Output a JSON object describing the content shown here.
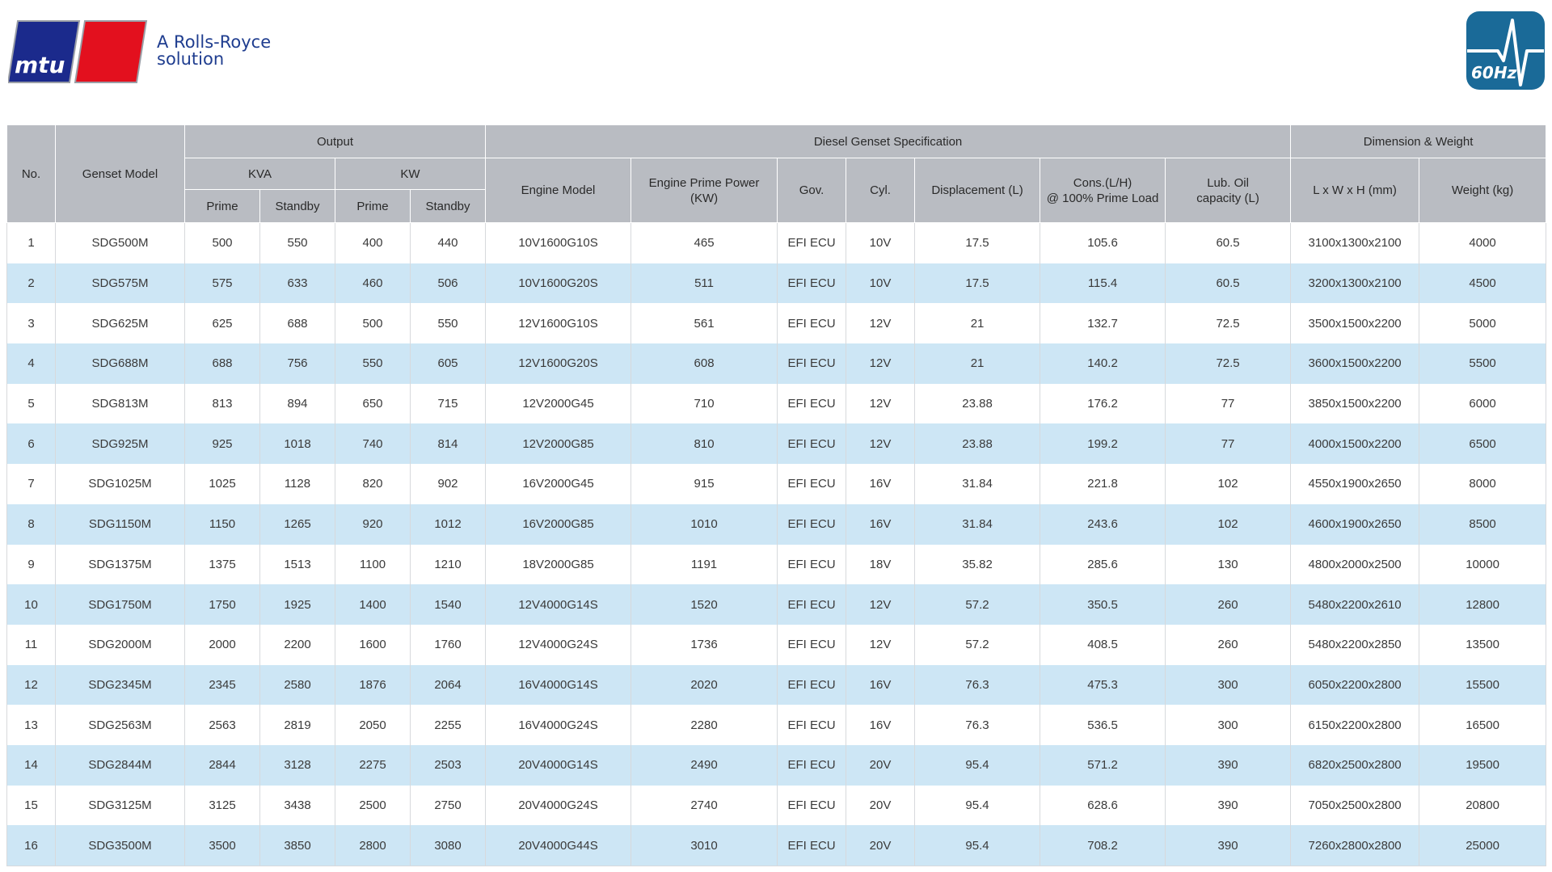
{
  "brand": {
    "logo_text": "mtu",
    "tagline_line1": "A Rolls-Royce",
    "tagline_line2": "solution",
    "badge_text": "60Hz",
    "colors": {
      "blue": "#1b2a8c",
      "red": "#e3101e",
      "badge": "#1a6a98"
    }
  },
  "table": {
    "headers": {
      "no": "No.",
      "genset_model": "Genset Model",
      "output": "Output",
      "kva": "KVA",
      "kw": "KW",
      "prime": "Prime",
      "standby": "Standby",
      "diesel_spec": "Diesel Genset Specification",
      "engine_model": "Engine Model",
      "engine_prime_power": "Engine Prime Power (KW)",
      "gov": "Gov.",
      "cyl": "Cyl.",
      "displacement": "Displacement (L)",
      "cons_line1": "Cons.(L/H)",
      "cons_line2": "@ 100% Prime Load",
      "lub_oil_line1": "Lub. Oil",
      "lub_oil_line2": "capacity (L)",
      "dimension_weight": "Dimension & Weight",
      "dimensions": "L x W x H (mm)",
      "weight": "Weight (kg)"
    },
    "rows": [
      [
        "1",
        "SDG500M",
        "500",
        "550",
        "400",
        "440",
        "10V1600G10S",
        "465",
        "EFI ECU",
        "10V",
        "17.5",
        "105.6",
        "60.5",
        "3100x1300x2100",
        "4000"
      ],
      [
        "2",
        "SDG575M",
        "575",
        "633",
        "460",
        "506",
        "10V1600G20S",
        "511",
        "EFI ECU",
        "10V",
        "17.5",
        "115.4",
        "60.5",
        "3200x1300x2100",
        "4500"
      ],
      [
        "3",
        "SDG625M",
        "625",
        "688",
        "500",
        "550",
        "12V1600G10S",
        "561",
        "EFI ECU",
        "12V",
        "21",
        "132.7",
        "72.5",
        "3500x1500x2200",
        "5000"
      ],
      [
        "4",
        "SDG688M",
        "688",
        "756",
        "550",
        "605",
        "12V1600G20S",
        "608",
        "EFI ECU",
        "12V",
        "21",
        "140.2",
        "72.5",
        "3600x1500x2200",
        "5500"
      ],
      [
        "5",
        "SDG813M",
        "813",
        "894",
        "650",
        "715",
        "12V2000G45",
        "710",
        "EFI ECU",
        "12V",
        "23.88",
        "176.2",
        "77",
        "3850x1500x2200",
        "6000"
      ],
      [
        "6",
        "SDG925M",
        "925",
        "1018",
        "740",
        "814",
        "12V2000G85",
        "810",
        "EFI ECU",
        "12V",
        "23.88",
        "199.2",
        "77",
        "4000x1500x2200",
        "6500"
      ],
      [
        "7",
        "SDG1025M",
        "1025",
        "1128",
        "820",
        "902",
        "16V2000G45",
        "915",
        "EFI ECU",
        "16V",
        "31.84",
        "221.8",
        "102",
        "4550x1900x2650",
        "8000"
      ],
      [
        "8",
        "SDG1150M",
        "1150",
        "1265",
        "920",
        "1012",
        "16V2000G85",
        "1010",
        "EFI ECU",
        "16V",
        "31.84",
        "243.6",
        "102",
        "4600x1900x2650",
        "8500"
      ],
      [
        "9",
        "SDG1375M",
        "1375",
        "1513",
        "1100",
        "1210",
        "18V2000G85",
        "1191",
        "EFI ECU",
        "18V",
        "35.82",
        "285.6",
        "130",
        "4800x2000x2500",
        "10000"
      ],
      [
        "10",
        "SDG1750M",
        "1750",
        "1925",
        "1400",
        "1540",
        "12V4000G14S",
        "1520",
        "EFI ECU",
        "12V",
        "57.2",
        "350.5",
        "260",
        "5480x2200x2610",
        "12800"
      ],
      [
        "11",
        "SDG2000M",
        "2000",
        "2200",
        "1600",
        "1760",
        "12V4000G24S",
        "1736",
        "EFI ECU",
        "12V",
        "57.2",
        "408.5",
        "260",
        "5480x2200x2850",
        "13500"
      ],
      [
        "12",
        "SDG2345M",
        "2345",
        "2580",
        "1876",
        "2064",
        "16V4000G14S",
        "2020",
        "EFI ECU",
        "16V",
        "76.3",
        "475.3",
        "300",
        "6050x2200x2800",
        "15500"
      ],
      [
        "13",
        "SDG2563M",
        "2563",
        "2819",
        "2050",
        "2255",
        "16V4000G24S",
        "2280",
        "EFI ECU",
        "16V",
        "76.3",
        "536.5",
        "300",
        "6150x2200x2800",
        "16500"
      ],
      [
        "14",
        "SDG2844M",
        "2844",
        "3128",
        "2275",
        "2503",
        "20V4000G14S",
        "2490",
        "EFI ECU",
        "20V",
        "95.4",
        "571.2",
        "390",
        "6820x2500x2800",
        "19500"
      ],
      [
        "15",
        "SDG3125M",
        "3125",
        "3438",
        "2500",
        "2750",
        "20V4000G24S",
        "2740",
        "EFI ECU",
        "20V",
        "95.4",
        "628.6",
        "390",
        "7050x2500x2800",
        "20800"
      ],
      [
        "16",
        "SDG3500M",
        "3500",
        "3850",
        "2800",
        "3080",
        "20V4000G44S",
        "3010",
        "EFI ECU",
        "20V",
        "95.4",
        "708.2",
        "390",
        "7260x2800x2800",
        "25000"
      ]
    ]
  }
}
